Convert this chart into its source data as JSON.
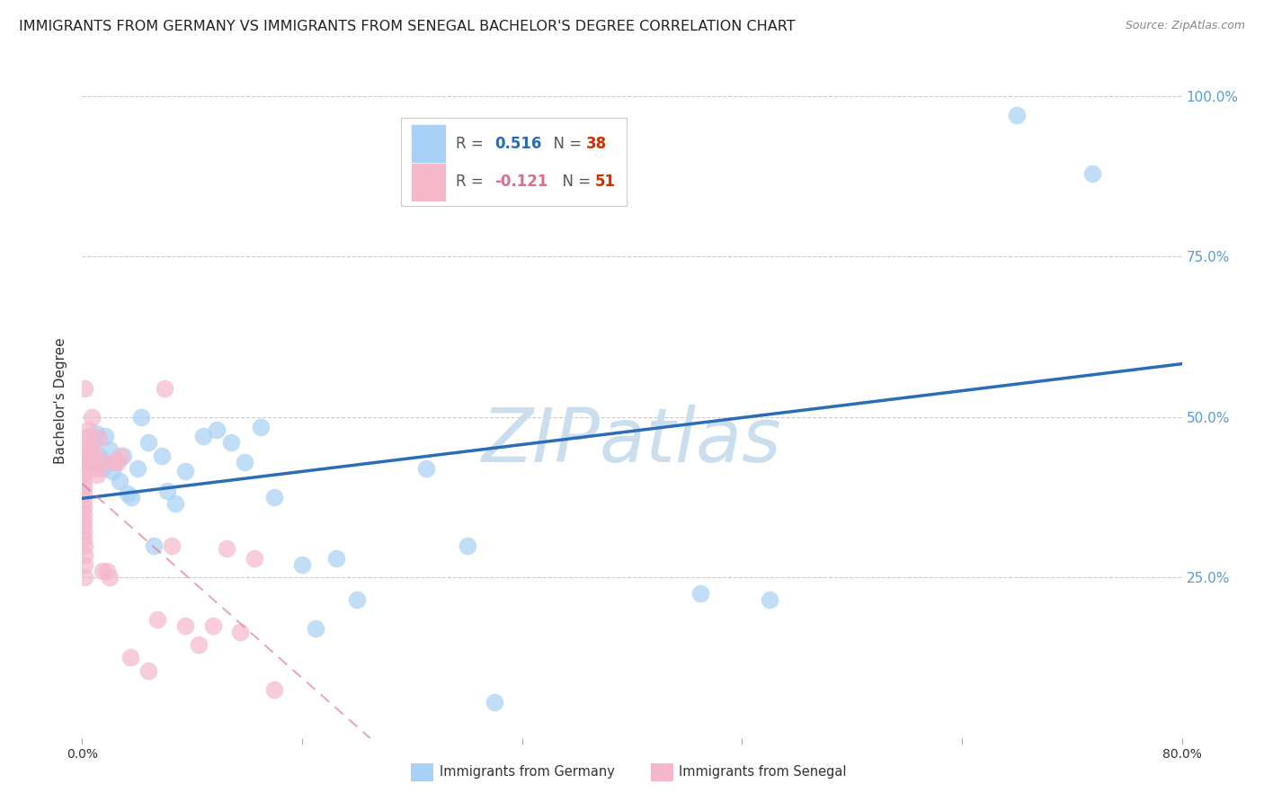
{
  "title": "IMMIGRANTS FROM GERMANY VS IMMIGRANTS FROM SENEGAL BACHELOR'S DEGREE CORRELATION CHART",
  "source": "Source: ZipAtlas.com",
  "ylabel": "Bachelor's Degree",
  "watermark": "ZIPatlas",
  "germany_color": "#A8D1F5",
  "senegal_color": "#F5B8CB",
  "trend_germany_color": "#2B6CB8",
  "trend_senegal_color": "#D96F8E",
  "germany_x": [
    0.004,
    0.008,
    0.01,
    0.012,
    0.015,
    0.017,
    0.02,
    0.022,
    0.024,
    0.027,
    0.03,
    0.033,
    0.036,
    0.04,
    0.043,
    0.048,
    0.052,
    0.058,
    0.062,
    0.068,
    0.075,
    0.088,
    0.098,
    0.108,
    0.118,
    0.13,
    0.14,
    0.16,
    0.17,
    0.185,
    0.2,
    0.25,
    0.28,
    0.3,
    0.45,
    0.5,
    0.68,
    0.735
  ],
  "germany_y": [
    0.43,
    0.46,
    0.475,
    0.44,
    0.42,
    0.47,
    0.45,
    0.415,
    0.43,
    0.4,
    0.44,
    0.38,
    0.375,
    0.42,
    0.5,
    0.46,
    0.3,
    0.44,
    0.385,
    0.365,
    0.415,
    0.47,
    0.48,
    0.46,
    0.43,
    0.485,
    0.375,
    0.27,
    0.17,
    0.28,
    0.215,
    0.42,
    0.3,
    0.055,
    0.225,
    0.215,
    0.97,
    0.88
  ],
  "senegal_x": [
    0.001,
    0.001,
    0.001,
    0.001,
    0.001,
    0.001,
    0.001,
    0.001,
    0.001,
    0.001,
    0.001,
    0.001,
    0.001,
    0.001,
    0.001,
    0.002,
    0.002,
    0.002,
    0.002,
    0.002,
    0.004,
    0.005,
    0.005,
    0.006,
    0.006,
    0.006,
    0.007,
    0.008,
    0.009,
    0.01,
    0.011,
    0.012,
    0.014,
    0.015,
    0.018,
    0.02,
    0.022,
    0.026,
    0.028,
    0.035,
    0.048,
    0.055,
    0.06,
    0.065,
    0.075,
    0.085,
    0.095,
    0.105,
    0.115,
    0.125,
    0.14
  ],
  "senegal_y": [
    0.45,
    0.44,
    0.43,
    0.42,
    0.41,
    0.4,
    0.39,
    0.38,
    0.37,
    0.36,
    0.35,
    0.34,
    0.33,
    0.32,
    0.31,
    0.3,
    0.285,
    0.27,
    0.25,
    0.545,
    0.48,
    0.47,
    0.46,
    0.45,
    0.44,
    0.43,
    0.5,
    0.43,
    0.44,
    0.42,
    0.41,
    0.468,
    0.43,
    0.26,
    0.26,
    0.25,
    0.43,
    0.43,
    0.44,
    0.125,
    0.105,
    0.185,
    0.545,
    0.3,
    0.175,
    0.145,
    0.175,
    0.295,
    0.165,
    0.28,
    0.075
  ],
  "xlim": [
    0.0,
    0.8
  ],
  "ylim": [
    0.0,
    1.05
  ],
  "yticks": [
    0.0,
    0.25,
    0.5,
    0.75,
    1.0
  ],
  "ytick_labels_right": [
    "",
    "25.0%",
    "50.0%",
    "75.0%",
    "100.0%"
  ],
  "xticks": [
    0.0,
    0.16,
    0.32,
    0.48,
    0.64,
    0.8
  ],
  "xtick_labels": [
    "0.0%",
    "",
    "",
    "",
    "",
    "80.0%"
  ],
  "background_color": "#FFFFFF",
  "grid_color": "#CCCCCC",
  "tick_color_right": "#5B9BD5",
  "title_color": "#222222",
  "title_fontsize": 11.5,
  "source_fontsize": 9,
  "watermark_color": "#CADEEE",
  "watermark_fontsize": 60
}
